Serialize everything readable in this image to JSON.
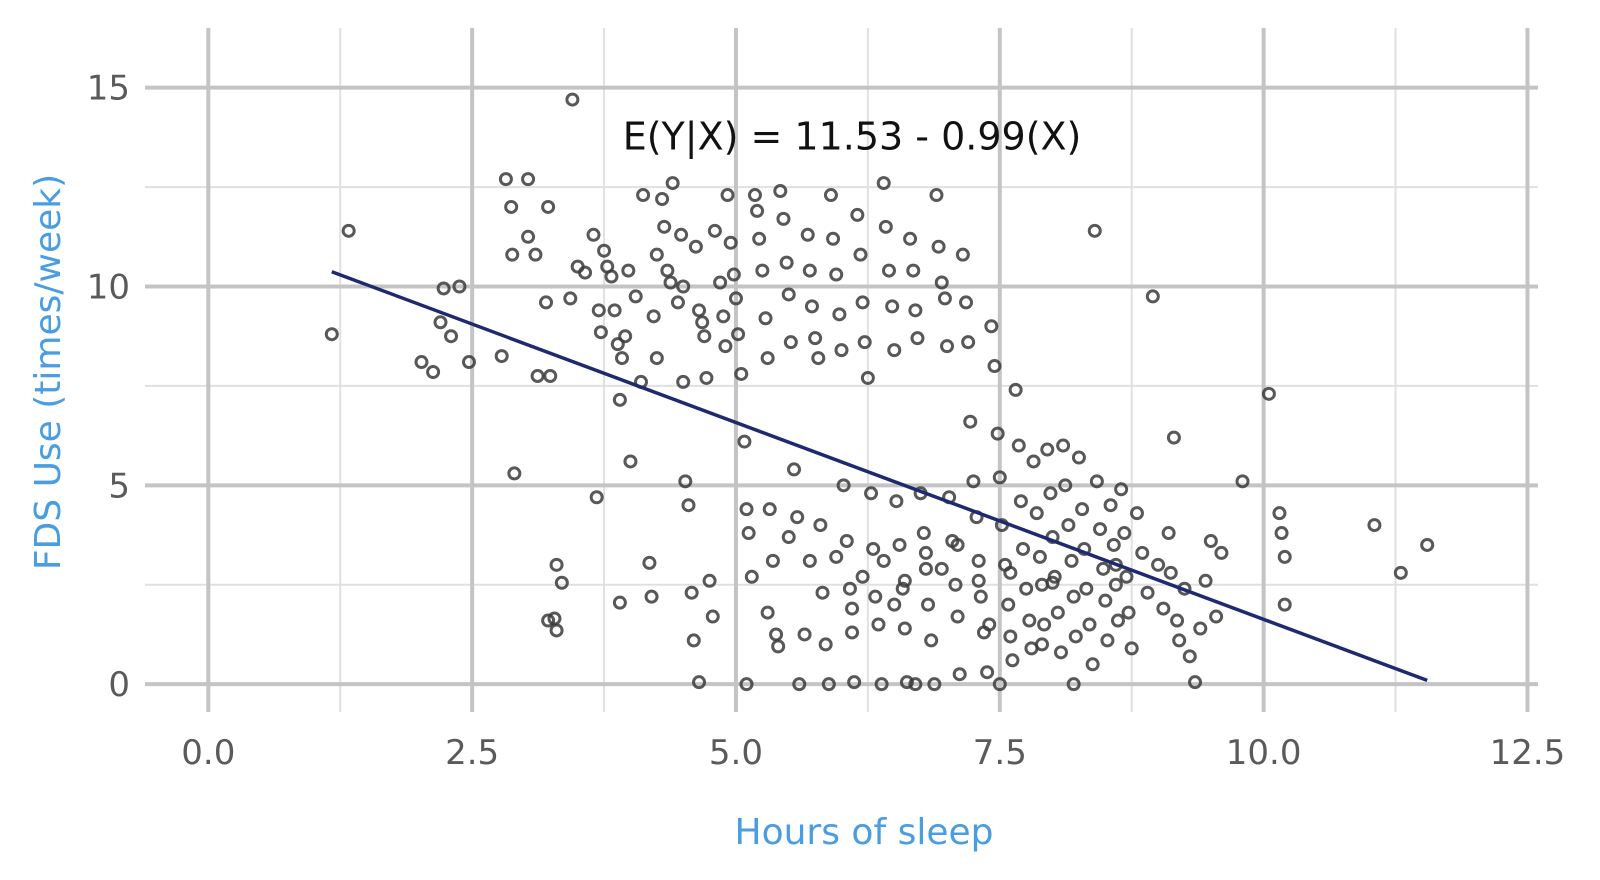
{
  "chart_data": {
    "type": "scatter",
    "title": "",
    "xlabel": "Hours of sleep",
    "ylabel": "FDS Use (times/week)",
    "xlim": [
      -0.6,
      12.6
    ],
    "ylim": [
      -0.7,
      16.5
    ],
    "x_ticks": [
      0,
      2.5,
      5,
      7.5,
      10,
      12.5
    ],
    "x_tick_labels": [
      "0.0",
      "2.5",
      "5.0",
      "7.5",
      "10.0",
      "12.5"
    ],
    "y_ticks": [
      0,
      5,
      10,
      15
    ],
    "y_tick_labels": [
      "0",
      "5",
      "10",
      "15"
    ],
    "grid": true,
    "annotation": {
      "text": "E(Y|X) = 11.53 - 0.99(X)",
      "x": 6.1,
      "y": 13.8
    },
    "regression": {
      "intercept": 11.53,
      "slope": -0.99,
      "x_start": 1.17,
      "x_end": 11.55
    },
    "colors": {
      "axis_title": "#4a9de0",
      "fit_line": "#1f2a6e",
      "points": "#3b3b3b"
    },
    "points": [
      [
        1.17,
        8.8
      ],
      [
        1.33,
        11.4
      ],
      [
        2.02,
        8.1
      ],
      [
        2.13,
        7.85
      ],
      [
        2.2,
        9.1
      ],
      [
        2.23,
        9.95
      ],
      [
        2.3,
        8.75
      ],
      [
        2.38,
        10.0
      ],
      [
        2.47,
        8.1
      ],
      [
        2.78,
        8.25
      ],
      [
        2.82,
        12.7
      ],
      [
        2.87,
        12.0
      ],
      [
        2.88,
        10.8
      ],
      [
        2.9,
        5.3
      ],
      [
        3.03,
        12.7
      ],
      [
        3.03,
        11.25
      ],
      [
        3.1,
        10.8
      ],
      [
        3.12,
        7.75
      ],
      [
        3.2,
        9.6
      ],
      [
        3.22,
        12.0
      ],
      [
        3.24,
        7.75
      ],
      [
        3.22,
        1.6
      ],
      [
        3.28,
        1.65
      ],
      [
        3.3,
        1.35
      ],
      [
        3.3,
        3.0
      ],
      [
        3.35,
        2.55
      ],
      [
        3.43,
        9.7
      ],
      [
        3.45,
        14.7
      ],
      [
        3.5,
        10.5
      ],
      [
        3.57,
        10.35
      ],
      [
        3.65,
        11.3
      ],
      [
        3.68,
        4.7
      ],
      [
        3.7,
        9.4
      ],
      [
        3.72,
        8.85
      ],
      [
        3.75,
        10.9
      ],
      [
        3.78,
        10.5
      ],
      [
        3.82,
        10.25
      ],
      [
        3.85,
        9.4
      ],
      [
        3.88,
        8.55
      ],
      [
        3.9,
        7.15
      ],
      [
        3.9,
        2.05
      ],
      [
        3.92,
        8.2
      ],
      [
        3.95,
        8.75
      ],
      [
        3.98,
        10.4
      ],
      [
        4.0,
        5.6
      ],
      [
        4.05,
        9.75
      ],
      [
        4.1,
        7.6
      ],
      [
        4.12,
        12.3
      ],
      [
        4.18,
        3.05
      ],
      [
        4.2,
        2.2
      ],
      [
        4.25,
        10.8
      ],
      [
        4.22,
        9.25
      ],
      [
        4.25,
        8.2
      ],
      [
        4.3,
        12.2
      ],
      [
        4.32,
        11.5
      ],
      [
        4.35,
        10.4
      ],
      [
        4.38,
        10.1
      ],
      [
        4.4,
        12.6
      ],
      [
        4.45,
        9.6
      ],
      [
        4.48,
        11.3
      ],
      [
        4.5,
        10.0
      ],
      [
        4.5,
        7.6
      ],
      [
        4.52,
        5.1
      ],
      [
        4.55,
        4.5
      ],
      [
        4.58,
        2.3
      ],
      [
        4.6,
        1.1
      ],
      [
        4.62,
        11.0
      ],
      [
        4.65,
        9.4
      ],
      [
        4.68,
        9.1
      ],
      [
        4.7,
        8.75
      ],
      [
        4.72,
        7.7
      ],
      [
        4.75,
        2.6
      ],
      [
        4.78,
        1.7
      ],
      [
        4.8,
        11.4
      ],
      [
        4.85,
        10.1
      ],
      [
        4.88,
        9.25
      ],
      [
        4.9,
        8.5
      ],
      [
        4.92,
        12.3
      ],
      [
        4.95,
        11.1
      ],
      [
        4.98,
        10.3
      ],
      [
        5.0,
        9.7
      ],
      [
        5.02,
        8.8
      ],
      [
        5.05,
        7.8
      ],
      [
        5.08,
        6.1
      ],
      [
        5.1,
        4.4
      ],
      [
        5.12,
        3.8
      ],
      [
        5.15,
        2.7
      ],
      [
        5.18,
        12.3
      ],
      [
        5.2,
        11.9
      ],
      [
        5.22,
        11.2
      ],
      [
        5.25,
        10.4
      ],
      [
        5.28,
        9.2
      ],
      [
        5.3,
        8.2
      ],
      [
        5.32,
        4.4
      ],
      [
        5.35,
        3.1
      ],
      [
        5.38,
        1.25
      ],
      [
        5.4,
        0.95
      ],
      [
        5.42,
        12.4
      ],
      [
        5.45,
        11.7
      ],
      [
        5.48,
        10.6
      ],
      [
        5.5,
        9.8
      ],
      [
        5.52,
        8.6
      ],
      [
        5.55,
        5.4
      ],
      [
        5.58,
        4.2
      ],
      [
        5.6,
        0.0
      ],
      [
        5.65,
        1.25
      ],
      [
        5.68,
        11.3
      ],
      [
        5.7,
        10.4
      ],
      [
        5.72,
        9.5
      ],
      [
        5.75,
        8.7
      ],
      [
        5.78,
        8.2
      ],
      [
        5.8,
        4.0
      ],
      [
        5.82,
        2.3
      ],
      [
        5.85,
        1.0
      ],
      [
        5.88,
        0.0
      ],
      [
        5.9,
        12.3
      ],
      [
        5.92,
        11.2
      ],
      [
        5.95,
        10.3
      ],
      [
        5.98,
        9.3
      ],
      [
        6.0,
        8.4
      ],
      [
        6.02,
        5.0
      ],
      [
        6.05,
        3.6
      ],
      [
        6.08,
        2.4
      ],
      [
        6.1,
        1.3
      ],
      [
        6.12,
        0.05
      ],
      [
        6.15,
        11.8
      ],
      [
        6.18,
        10.8
      ],
      [
        6.2,
        9.6
      ],
      [
        6.22,
        8.6
      ],
      [
        6.25,
        7.7
      ],
      [
        6.28,
        4.8
      ],
      [
        6.3,
        3.4
      ],
      [
        6.32,
        2.2
      ],
      [
        6.35,
        1.5
      ],
      [
        6.38,
        0.0
      ],
      [
        6.4,
        12.6
      ],
      [
        6.42,
        11.5
      ],
      [
        6.45,
        10.4
      ],
      [
        6.48,
        9.5
      ],
      [
        6.5,
        8.4
      ],
      [
        6.52,
        4.6
      ],
      [
        6.55,
        3.5
      ],
      [
        6.58,
        2.4
      ],
      [
        6.6,
        1.4
      ],
      [
        6.62,
        0.05
      ],
      [
        6.65,
        11.2
      ],
      [
        6.68,
        10.4
      ],
      [
        6.7,
        9.4
      ],
      [
        6.72,
        8.7
      ],
      [
        6.75,
        4.8
      ],
      [
        6.78,
        3.8
      ],
      [
        6.8,
        2.9
      ],
      [
        6.82,
        2.0
      ],
      [
        6.85,
        1.1
      ],
      [
        6.88,
        0.0
      ],
      [
        6.9,
        12.3
      ],
      [
        6.92,
        11.0
      ],
      [
        6.95,
        10.1
      ],
      [
        6.98,
        9.7
      ],
      [
        7.0,
        8.5
      ],
      [
        7.02,
        4.7
      ],
      [
        7.05,
        3.6
      ],
      [
        7.08,
        2.5
      ],
      [
        7.1,
        1.7
      ],
      [
        7.12,
        0.25
      ],
      [
        7.15,
        10.8
      ],
      [
        7.18,
        9.6
      ],
      [
        7.2,
        8.6
      ],
      [
        7.22,
        6.6
      ],
      [
        7.25,
        5.1
      ],
      [
        7.28,
        4.2
      ],
      [
        7.3,
        3.1
      ],
      [
        7.32,
        2.2
      ],
      [
        7.35,
        1.3
      ],
      [
        7.38,
        0.3
      ],
      [
        7.42,
        9.0
      ],
      [
        7.45,
        8.0
      ],
      [
        7.48,
        6.3
      ],
      [
        7.5,
        5.2
      ],
      [
        7.52,
        4.0
      ],
      [
        7.55,
        3.0
      ],
      [
        7.58,
        2.0
      ],
      [
        7.6,
        1.2
      ],
      [
        7.62,
        0.6
      ],
      [
        7.65,
        7.4
      ],
      [
        7.68,
        6.0
      ],
      [
        7.7,
        4.6
      ],
      [
        7.72,
        3.4
      ],
      [
        7.75,
        2.4
      ],
      [
        7.78,
        1.6
      ],
      [
        7.8,
        0.9
      ],
      [
        7.82,
        5.6
      ],
      [
        7.85,
        4.3
      ],
      [
        7.88,
        3.2
      ],
      [
        7.9,
        2.5
      ],
      [
        7.92,
        1.5
      ],
      [
        7.95,
        5.9
      ],
      [
        7.98,
        4.8
      ],
      [
        8.0,
        3.7
      ],
      [
        8.02,
        2.7
      ],
      [
        8.05,
        1.8
      ],
      [
        8.08,
        0.8
      ],
      [
        8.1,
        6.0
      ],
      [
        8.12,
        5.0
      ],
      [
        8.15,
        4.0
      ],
      [
        8.18,
        3.1
      ],
      [
        8.2,
        2.2
      ],
      [
        8.22,
        1.2
      ],
      [
        8.25,
        5.7
      ],
      [
        8.28,
        4.4
      ],
      [
        8.3,
        3.4
      ],
      [
        8.32,
        2.4
      ],
      [
        8.35,
        1.5
      ],
      [
        8.38,
        0.5
      ],
      [
        8.4,
        11.4
      ],
      [
        8.42,
        5.1
      ],
      [
        8.45,
        3.9
      ],
      [
        8.48,
        2.9
      ],
      [
        8.5,
        2.1
      ],
      [
        8.52,
        1.1
      ],
      [
        8.55,
        4.5
      ],
      [
        8.58,
        3.5
      ],
      [
        8.6,
        2.5
      ],
      [
        8.62,
        1.6
      ],
      [
        8.65,
        4.9
      ],
      [
        8.68,
        3.8
      ],
      [
        8.7,
        2.7
      ],
      [
        8.72,
        1.8
      ],
      [
        8.75,
        0.9
      ],
      [
        8.8,
        4.3
      ],
      [
        8.85,
        3.3
      ],
      [
        8.9,
        2.3
      ],
      [
        8.95,
        9.75
      ],
      [
        9.0,
        3.0
      ],
      [
        9.05,
        1.9
      ],
      [
        9.1,
        3.8
      ],
      [
        9.12,
        2.8
      ],
      [
        9.15,
        6.2
      ],
      [
        9.18,
        1.6
      ],
      [
        9.2,
        1.1
      ],
      [
        9.25,
        2.4
      ],
      [
        9.3,
        0.7
      ],
      [
        9.35,
        0.05
      ],
      [
        9.4,
        1.4
      ],
      [
        9.45,
        2.6
      ],
      [
        9.5,
        3.6
      ],
      [
        9.55,
        1.7
      ],
      [
        9.6,
        3.3
      ],
      [
        9.8,
        5.1
      ],
      [
        10.05,
        7.3
      ],
      [
        10.15,
        4.3
      ],
      [
        10.17,
        3.8
      ],
      [
        10.2,
        3.2
      ],
      [
        10.2,
        2.0
      ],
      [
        11.05,
        4.0
      ],
      [
        11.3,
        2.8
      ],
      [
        11.55,
        3.5
      ],
      [
        5.1,
        0.0
      ],
      [
        4.65,
        0.05
      ],
      [
        7.5,
        0.0
      ],
      [
        6.7,
        0.0
      ],
      [
        8.2,
        0.0
      ],
      [
        6.95,
        2.9
      ],
      [
        6.4,
        3.1
      ],
      [
        6.2,
        2.7
      ],
      [
        5.95,
        3.2
      ],
      [
        6.6,
        2.6
      ],
      [
        7.3,
        2.6
      ],
      [
        7.6,
        2.8
      ],
      [
        8.0,
        2.55
      ],
      [
        6.8,
        3.3
      ],
      [
        7.1,
        3.5
      ],
      [
        5.7,
        3.1
      ],
      [
        5.5,
        3.7
      ],
      [
        6.1,
        1.9
      ],
      [
        6.5,
        2.0
      ],
      [
        7.4,
        1.5
      ],
      [
        5.3,
        1.8
      ],
      [
        7.9,
        1.0
      ],
      [
        8.6,
        3.0
      ]
    ]
  }
}
